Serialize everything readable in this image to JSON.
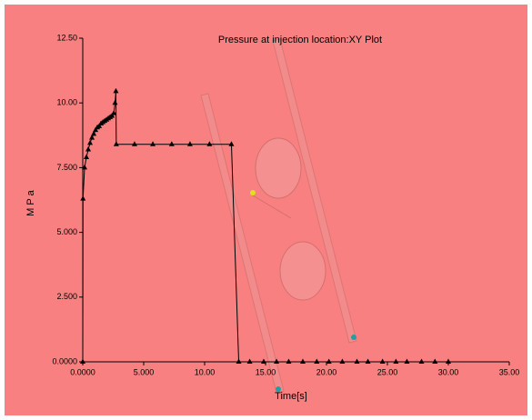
{
  "chart_data": {
    "type": "line",
    "title": "Pressure at injection location:XY Plot",
    "xlabel": "Time[s]",
    "ylabel": "MPa",
    "color": "#000000",
    "x": [
      0,
      0.02,
      0.15,
      0.3,
      0.45,
      0.6,
      0.75,
      0.9,
      1.05,
      1.2,
      1.35,
      1.5,
      1.65,
      1.8,
      1.95,
      2.1,
      2.25,
      2.4,
      2.55,
      2.65,
      2.72,
      2.75,
      4.25,
      5.75,
      7.3,
      8.8,
      10.4,
      12.2,
      12.8,
      13.7,
      14.85,
      15.9,
      16.9,
      18.06,
      19.2,
      20.2,
      21.3,
      22.5,
      23.4,
      24.6,
      25.7,
      26.6,
      27.8,
      28.9,
      30
    ],
    "values": [
      0,
      6.3,
      7.5,
      7.9,
      8.2,
      8.45,
      8.65,
      8.8,
      8.95,
      9.05,
      9.1,
      9.2,
      9.25,
      9.3,
      9.35,
      9.4,
      9.45,
      9.5,
      9.6,
      10.0,
      10.45,
      8.4,
      8.4,
      8.4,
      8.4,
      8.4,
      8.4,
      8.4,
      0,
      0,
      0,
      0,
      0,
      0,
      0,
      0,
      0,
      0,
      0,
      0,
      0,
      0,
      0,
      0,
      0
    ],
    "xlim": [
      0,
      35
    ],
    "ylim": [
      0,
      12.5
    ],
    "xticks": [
      {
        "value": 0,
        "label": "0.0000"
      },
      {
        "value": 5,
        "label": "5.000"
      },
      {
        "value": 10,
        "label": "10.00"
      },
      {
        "value": 15,
        "label": "15.00"
      },
      {
        "value": 20,
        "label": "20.00"
      },
      {
        "value": 25,
        "label": "25.00"
      },
      {
        "value": 30,
        "label": "30.00"
      },
      {
        "value": 35,
        "label": "35.00"
      }
    ],
    "yticks": [
      {
        "value": 0,
        "label": "0.0000"
      },
      {
        "value": 2.5,
        "label": "2.500"
      },
      {
        "value": 5,
        "label": "5.000"
      },
      {
        "value": 7.5,
        "label": "7.500"
      },
      {
        "value": 10,
        "label": "10.00"
      },
      {
        "value": 12.5,
        "label": "12.50"
      }
    ]
  }
}
